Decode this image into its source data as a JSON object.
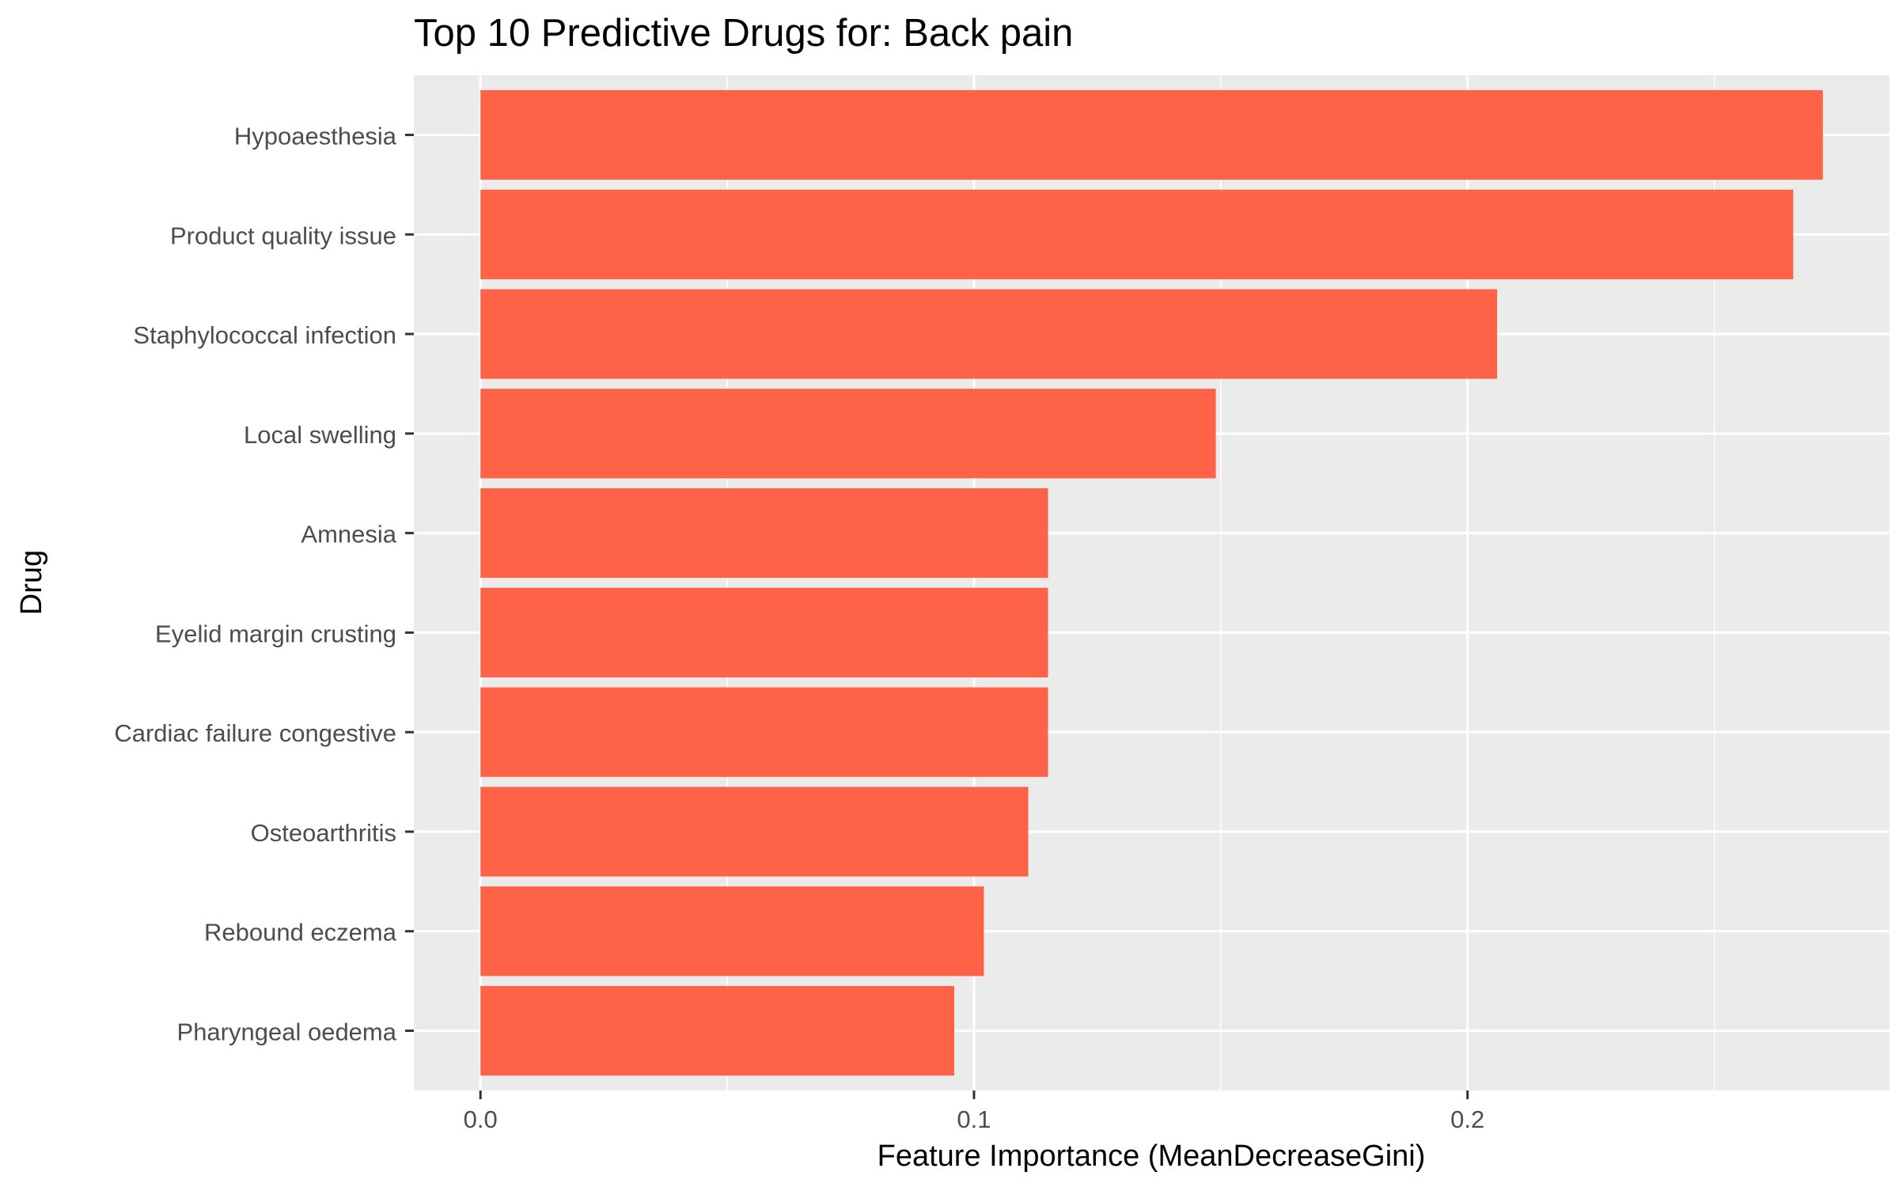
{
  "chart_data": {
    "type": "bar",
    "orientation": "horizontal",
    "title": "Top 10 Predictive Drugs for: Back pain",
    "xlabel": "Feature Importance (MeanDecreaseGini)",
    "ylabel": "Drug",
    "categories": [
      "Hypoaesthesia",
      "Product quality issue",
      "Staphylococcal infection",
      "Local swelling",
      "Amnesia",
      "Eyelid margin crusting",
      "Cardiac failure congestive",
      "Osteoarthritis",
      "Rebound eczema",
      "Pharyngeal oedema"
    ],
    "values": [
      0.272,
      0.266,
      0.206,
      0.149,
      0.115,
      0.115,
      0.115,
      0.111,
      0.102,
      0.096
    ],
    "xlim": [
      -0.0135,
      0.2855
    ],
    "x_ticks": [
      0.0,
      0.1,
      0.2
    ],
    "x_tick_labels": [
      "0.0",
      "0.1",
      "0.2"
    ],
    "x_minor_gridlines": [
      0.05,
      0.15,
      0.25
    ],
    "grid": true,
    "legend": "none",
    "colors": {
      "bar": "#FF6347",
      "panel_background": "#EBEBEB",
      "gridline": "#FFFFFF",
      "tick_text": "#4D4D4D",
      "axis_title_text": "#000000"
    }
  }
}
